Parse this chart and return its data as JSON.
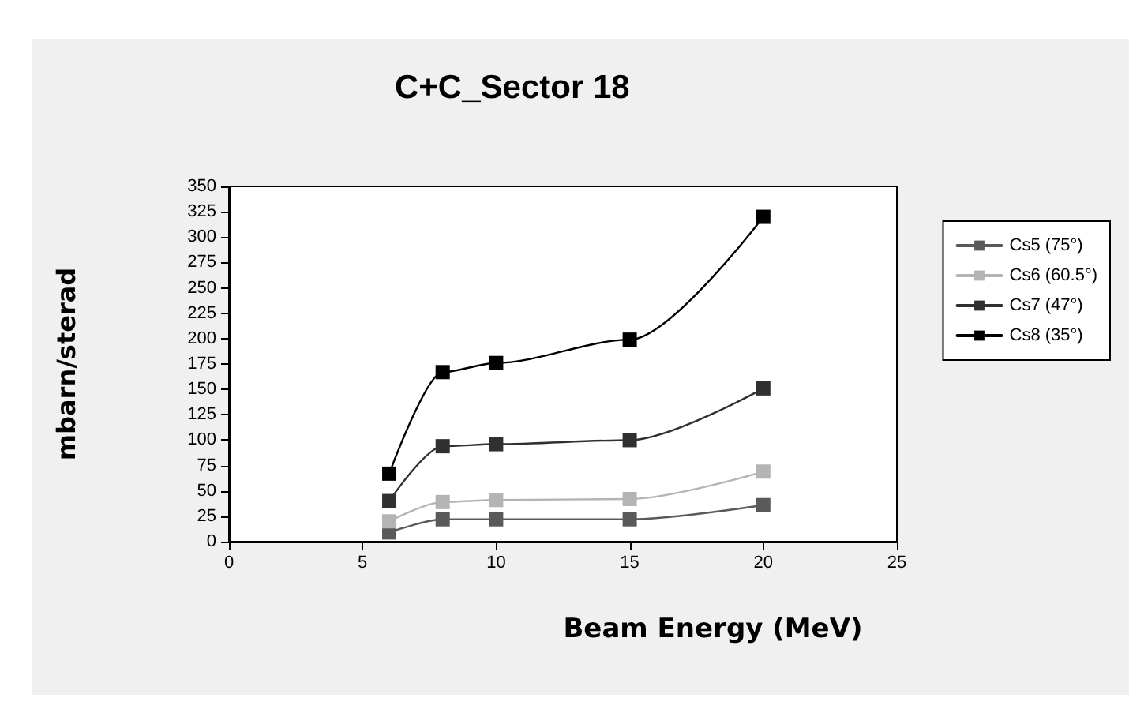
{
  "chart_data": {
    "type": "line",
    "title": "C+C_Sector 18",
    "xlabel": "Beam Energy (MeV)",
    "ylabel": "mbarn/sterad",
    "x": [
      6,
      8,
      10,
      15,
      20
    ],
    "series": [
      {
        "name": "Cs5 (75°)",
        "color": "#5a5a5a",
        "values": [
          9,
          22,
          22,
          22,
          36
        ]
      },
      {
        "name": "Cs6 (60.5°)",
        "color": "#b4b4b4",
        "values": [
          20,
          39,
          41,
          42,
          69
        ]
      },
      {
        "name": "Cs7 (47°)",
        "color": "#303030",
        "values": [
          40,
          94,
          96,
          100,
          151
        ]
      },
      {
        "name": "Cs8 (35°)",
        "color": "#000000",
        "values": [
          67,
          167,
          176,
          199,
          320
        ]
      }
    ],
    "xlim": [
      0,
      25
    ],
    "xticks": [
      0,
      5,
      10,
      15,
      20,
      25
    ],
    "ylim": [
      0,
      350
    ],
    "yticks": [
      0,
      25,
      50,
      75,
      100,
      125,
      150,
      175,
      200,
      225,
      250,
      275,
      300,
      325,
      350
    ],
    "grid": false,
    "legend": "right",
    "marker": "square",
    "line_style": "solid"
  }
}
